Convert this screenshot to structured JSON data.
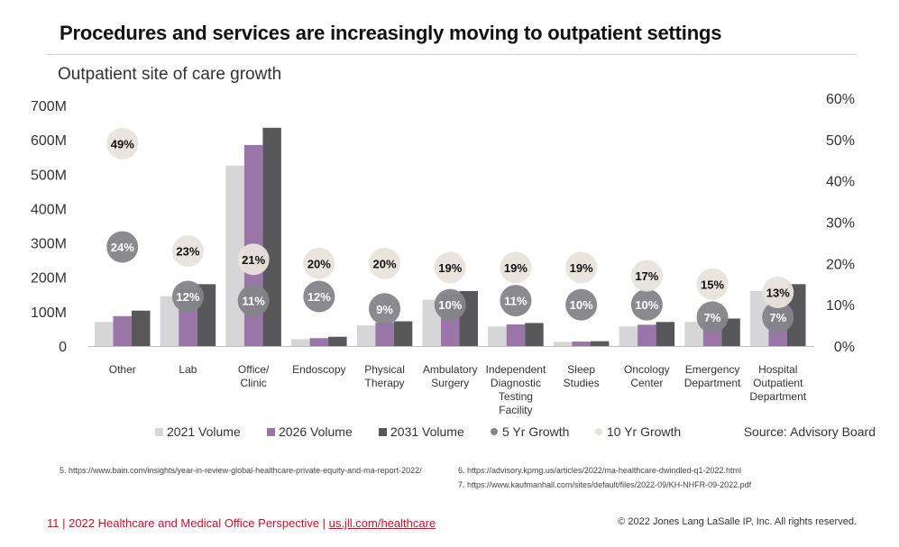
{
  "page": {
    "title": "Procedures and services are increasingly moving to outpatient settings",
    "source": "Source: Advisory Board"
  },
  "footnotes": {
    "note5": "5. https://www.bain.com/insights/year-in-review-global-healthcare-private-equity-and-ma-report-2022/",
    "note6": "6. https://advisory.kpmg.us/articles/2022/ma-healthcare-dwindled-q1-2022.html",
    "note7": "7. https://www.kaufmanhall.com/sites/default/files/2022-09/KH-NHFR-09-2022.pdf"
  },
  "footer": {
    "page_text": "11 | 2022 Healthcare and Medical Office Perspective | ",
    "link": "us.jll.com/healthcare",
    "copyright": "© 2022 Jones Lang LaSalle IP, Inc. All rights reserved."
  },
  "chart_data": {
    "type": "bar",
    "subtitle": "Outpatient site of care growth",
    "categories": [
      "Other",
      "Lab",
      "Office/ Clinic",
      "Endoscopy",
      "Physical Therapy",
      "Ambulatory Surgery",
      "Independent Diagnostic Testing Facility",
      "Sleep Studies",
      "Oncology Center",
      "Emergency Department",
      "Hospital Outpatient Department"
    ],
    "category_lines": [
      [
        "Other"
      ],
      [
        "Lab"
      ],
      [
        "Office/",
        "Clinic"
      ],
      [
        "Endoscopy"
      ],
      [
        "Physical",
        "Therapy"
      ],
      [
        "Ambulatory",
        "Surgery"
      ],
      [
        "Independent",
        "Diagnostic",
        "Testing",
        "Facility"
      ],
      [
        "Sleep",
        "Studies"
      ],
      [
        "Oncology",
        "Center"
      ],
      [
        "Emergency",
        "Department"
      ],
      [
        "Hospital",
        "Outpatient",
        "Department"
      ]
    ],
    "series": [
      {
        "name": "2021 Volume",
        "color": "#d6d6d8",
        "values": [
          70,
          145,
          525,
          20,
          60,
          135,
          57,
          12,
          57,
          70,
          160
        ]
      },
      {
        "name": "2026 Volume",
        "color": "#9a76a8",
        "values": [
          87,
          165,
          585,
          23,
          68,
          150,
          63,
          13,
          62,
          75,
          170
        ]
      },
      {
        "name": "2031 Volume",
        "color": "#58585b",
        "values": [
          103,
          180,
          635,
          27,
          72,
          160,
          67,
          14,
          70,
          80,
          180
        ]
      }
    ],
    "growth_series": [
      {
        "name": "5 Yr Growth",
        "color": "#858589",
        "text_color": "#ffffff",
        "values": [
          24,
          null,
          11,
          12,
          9,
          10,
          11,
          10,
          10,
          7,
          7
        ],
        "labels": [
          "24%",
          "12%",
          "11%",
          "12%",
          "9%",
          "10%",
          "11%",
          "10%",
          "10%",
          "7%",
          "7%"
        ]
      },
      {
        "name": "10 Yr Growth",
        "color": "#e8e3db",
        "text_color": "#111111",
        "values": [
          49,
          23,
          21,
          20,
          20,
          19,
          19,
          19,
          17,
          15,
          13
        ],
        "labels": [
          "49%",
          "23%",
          "21%",
          "20%",
          "20%",
          "19%",
          "19%",
          "19%",
          "17%",
          "15%",
          "13%"
        ]
      }
    ],
    "extra_bubble": {
      "category": "Lab",
      "value": 12,
      "series": "5 Yr Growth"
    },
    "y_left": {
      "ticks": [
        0,
        100,
        200,
        300,
        400,
        500,
        600,
        700
      ],
      "tick_labels": [
        "0",
        "100M",
        "200M",
        "300M",
        "400M",
        "500M",
        "600M",
        "700M"
      ],
      "range": [
        0,
        700
      ]
    },
    "y_right": {
      "ticks": [
        0,
        10,
        20,
        30,
        40,
        50,
        60
      ],
      "tick_labels": [
        "0%",
        "10%",
        "20%",
        "30%",
        "40%",
        "50%",
        "60%"
      ],
      "range": [
        0,
        60
      ]
    },
    "legend": [
      "2021 Volume",
      "2026 Volume",
      "2031 Volume",
      "5 Yr Growth",
      "10 Yr Growth"
    ],
    "grid": false,
    "legend_position": "bottom"
  }
}
